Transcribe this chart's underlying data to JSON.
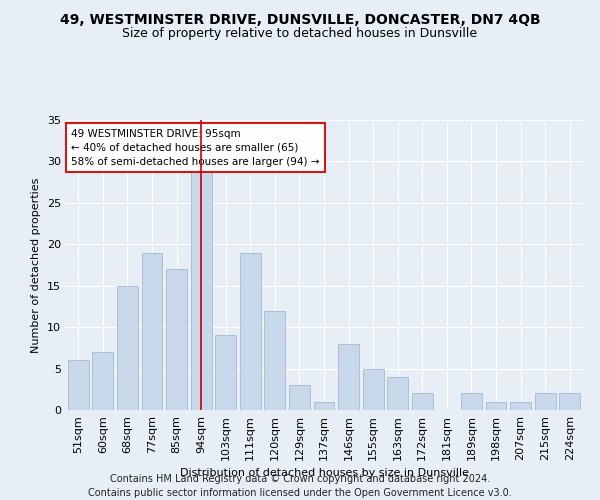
{
  "title1": "49, WESTMINSTER DRIVE, DUNSVILLE, DONCASTER, DN7 4QB",
  "title2": "Size of property relative to detached houses in Dunsville",
  "xlabel": "Distribution of detached houses by size in Dunsville",
  "ylabel": "Number of detached properties",
  "footer1": "Contains HM Land Registry data © Crown copyright and database right 2024.",
  "footer2": "Contains public sector information licensed under the Open Government Licence v3.0.",
  "annotation_line1": "49 WESTMINSTER DRIVE: 95sqm",
  "annotation_line2": "← 40% of detached houses are smaller (65)",
  "annotation_line3": "58% of semi-detached houses are larger (94) →",
  "bar_labels": [
    "51sqm",
    "60sqm",
    "68sqm",
    "77sqm",
    "85sqm",
    "94sqm",
    "103sqm",
    "111sqm",
    "120sqm",
    "129sqm",
    "137sqm",
    "146sqm",
    "155sqm",
    "163sqm",
    "172sqm",
    "181sqm",
    "189sqm",
    "198sqm",
    "207sqm",
    "215sqm",
    "224sqm"
  ],
  "bar_values": [
    6,
    7,
    15,
    19,
    17,
    29,
    9,
    19,
    12,
    3,
    1,
    8,
    5,
    4,
    2,
    0,
    2,
    1,
    1,
    2,
    2
  ],
  "bar_color": "#c8d8ea",
  "bar_edge_color": "#9ab4cc",
  "vline_index": 5,
  "vline_color": "#cc0000",
  "ylim": [
    0,
    35
  ],
  "yticks": [
    0,
    5,
    10,
    15,
    20,
    25,
    30,
    35
  ],
  "bg_color": "#e8eef6",
  "plot_bg_color": "#e8eef6",
  "grid_color": "#ffffff",
  "annotation_box_edge": "#cc0000",
  "title1_fontsize": 10,
  "title2_fontsize": 9,
  "axis_fontsize": 8,
  "ylabel_fontsize": 8,
  "footer_fontsize": 7
}
